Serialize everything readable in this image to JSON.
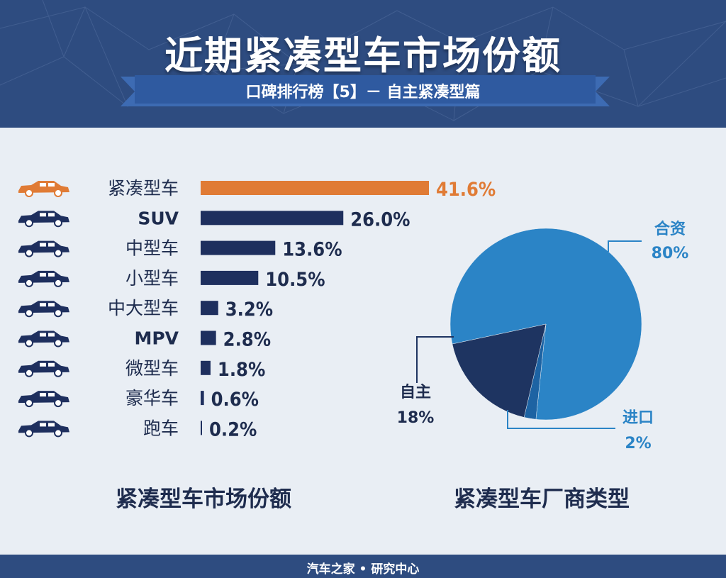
{
  "header": {
    "title": "近期紧凑型车市场份额",
    "subtitle": "口碑排行榜【5】－ 自主紧凑型篇"
  },
  "footer": {
    "text": "汽车之家 • 研究中心"
  },
  "colors": {
    "header_bg": "#2e4c80",
    "page_bg": "#e9eef4",
    "highlight": "#e07b35",
    "bar": "#1e2f5e",
    "pie_main": "#2b84c6",
    "pie_dark": "#1e3461",
    "pie_mid": "#1d63a3"
  },
  "chart_data": [
    {
      "type": "bar",
      "orientation": "horizontal",
      "title": "紧凑型车市场份额",
      "categories": [
        "紧凑型车",
        "SUV",
        "中型车",
        "小型车",
        "中大型车",
        "MPV",
        "微型车",
        "豪华车",
        "跑车"
      ],
      "values": [
        41.6,
        26.0,
        13.6,
        10.5,
        3.2,
        2.8,
        1.8,
        0.6,
        0.2
      ],
      "value_labels": [
        "41.6%",
        "26.0%",
        "13.6%",
        "10.5%",
        "3.2%",
        "2.8%",
        "1.8%",
        "0.6%",
        "0.2%"
      ],
      "highlight_index": 0,
      "icons": [
        "car-icon",
        "suv-icon",
        "car-icon",
        "hatchback-icon",
        "car-icon",
        "mpv-icon",
        "minicar-icon",
        "car-icon",
        "sportscar-icon"
      ]
    },
    {
      "type": "pie",
      "title": "紧凑型车厂商类型",
      "slices": [
        {
          "label": "合资",
          "value": 80,
          "value_label": "80%",
          "color": "#2b84c6"
        },
        {
          "label": "进口",
          "value": 2,
          "value_label": "2%",
          "color": "#1d63a3"
        },
        {
          "label": "自主",
          "value": 18,
          "value_label": "18%",
          "color": "#1e3461"
        }
      ]
    }
  ]
}
